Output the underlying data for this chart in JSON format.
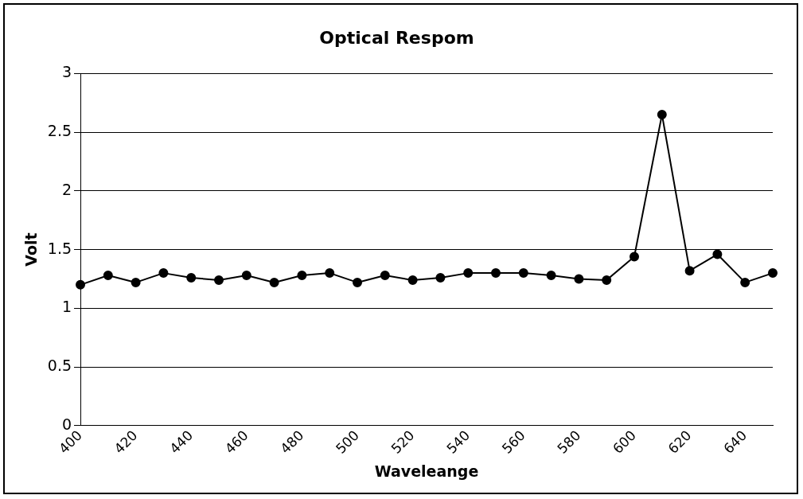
{
  "chart_data": {
    "type": "line",
    "title": "Optical Respom",
    "xlabel": "Waveleange",
    "ylabel": "Volt",
    "categories": [
      "400",
      null,
      "420",
      null,
      "440",
      null,
      "460",
      null,
      "480",
      null,
      "500",
      null,
      "520",
      null,
      "540",
      null,
      "560",
      null,
      "580",
      null,
      "600",
      null,
      "620",
      null,
      "640",
      null
    ],
    "series": [
      {
        "color": "#000000",
        "values": [
          1.2,
          1.28,
          1.22,
          1.3,
          1.26,
          1.24,
          1.28,
          1.22,
          1.28,
          1.3,
          1.22,
          1.28,
          1.24,
          1.26,
          1.3,
          1.3,
          1.3,
          1.28,
          1.25,
          1.24,
          1.44,
          2.65,
          1.32,
          1.46,
          1.22,
          1.3
        ]
      }
    ],
    "ylim": [
      0,
      3
    ],
    "yticks": [
      0,
      0.5,
      1,
      1.5,
      2,
      2.5,
      3
    ],
    "grid": "y",
    "legend": false,
    "marker": "circle",
    "line_style": "solid"
  }
}
